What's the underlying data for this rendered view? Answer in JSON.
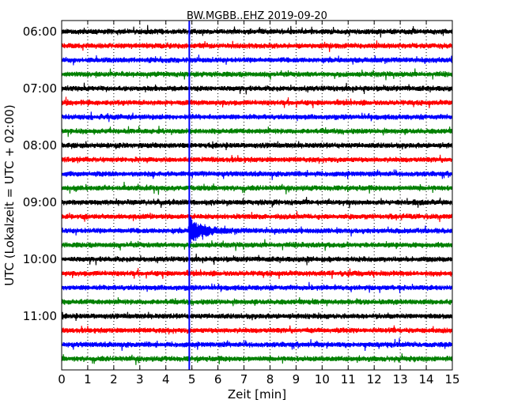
{
  "chart_data": {
    "type": "line",
    "title": "BW.MGBB..EHZ 2019-09-20",
    "xlabel": "Zeit  [min]",
    "ylabel": "UTC (Lokalzeit = UTC + 02:00)",
    "xlim": [
      0,
      15
    ],
    "x_ticks": [
      "0",
      "1",
      "2",
      "3",
      "4",
      "5",
      "6",
      "7",
      "8",
      "9",
      "10",
      "11",
      "12",
      "13",
      "14",
      "15"
    ],
    "y_ticks": [
      "06:00",
      "07:00",
      "08:00",
      "09:00",
      "10:00",
      "11:00"
    ],
    "grid": "vertical dotted",
    "trace_colors": [
      "#000000",
      "#ff0000",
      "#0000ff",
      "#008000"
    ],
    "rows": [
      {
        "start": "06:00",
        "color": "#000000"
      },
      {
        "start": "06:15",
        "color": "#ff0000"
      },
      {
        "start": "06:30",
        "color": "#0000ff"
      },
      {
        "start": "06:45",
        "color": "#008000"
      },
      {
        "start": "07:00",
        "color": "#000000"
      },
      {
        "start": "07:15",
        "color": "#ff0000"
      },
      {
        "start": "07:30",
        "color": "#0000ff"
      },
      {
        "start": "07:45",
        "color": "#008000"
      },
      {
        "start": "08:00",
        "color": "#000000"
      },
      {
        "start": "08:15",
        "color": "#ff0000"
      },
      {
        "start": "08:30",
        "color": "#0000ff"
      },
      {
        "start": "08:45",
        "color": "#008000"
      },
      {
        "start": "09:00",
        "color": "#000000"
      },
      {
        "start": "09:15",
        "color": "#ff0000"
      },
      {
        "start": "09:30",
        "color": "#0000ff"
      },
      {
        "start": "09:45",
        "color": "#008000"
      },
      {
        "start": "10:00",
        "color": "#000000"
      },
      {
        "start": "10:15",
        "color": "#ff0000"
      },
      {
        "start": "10:30",
        "color": "#0000ff"
      },
      {
        "start": "10:45",
        "color": "#008000"
      },
      {
        "start": "11:00",
        "color": "#000000"
      },
      {
        "start": "11:15",
        "color": "#ff0000"
      },
      {
        "start": "11:30",
        "color": "#0000ff"
      },
      {
        "start": "11:45",
        "color": "#008000"
      }
    ],
    "event_marker": {
      "x_min": 4.9,
      "color": "#0000ff"
    },
    "event": {
      "row_start": "09:30",
      "x_min": 4.9
    }
  }
}
